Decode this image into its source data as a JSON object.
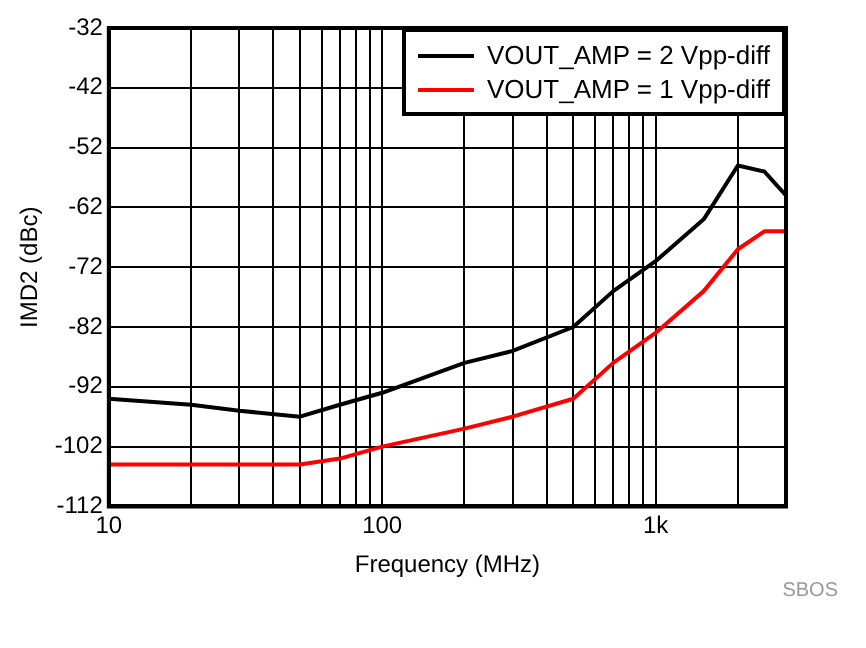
{
  "chart_data": {
    "type": "line",
    "xlabel": "Frequency (MHz)",
    "ylabel": "IMD2 (dBc)",
    "x": [
      10,
      20,
      30,
      50,
      70,
      100,
      200,
      300,
      500,
      700,
      1000,
      1500,
      2000,
      2500,
      3000
    ],
    "series": [
      {
        "name": "VOUT_AMP = 2 Vpp-diff",
        "color": "#000000",
        "values": [
          -94,
          -95,
          -96,
          -97,
          -95,
          -93,
          -88,
          -86,
          -82,
          -76,
          -71,
          -64,
          -55,
          -56,
          -60
        ]
      },
      {
        "name": "VOUT_AMP = 1 Vpp-diff",
        "color": "#ff0000",
        "values": [
          -105,
          -105,
          -105,
          -105,
          -104,
          -102,
          -99,
          -97,
          -94,
          -88,
          -83,
          -76,
          -69,
          -66,
          -66
        ]
      }
    ],
    "xlim": [
      10,
      3000
    ],
    "xticks": [
      10,
      {
        "value": 20,
        "label": null
      },
      {
        "value": 30,
        "label": null
      },
      {
        "value": 40,
        "label": null
      },
      {
        "value": 50,
        "label": null
      },
      {
        "value": 60,
        "label": null
      },
      {
        "value": 70,
        "label": null
      },
      {
        "value": 80,
        "label": null
      },
      {
        "value": 90,
        "label": null
      },
      100,
      {
        "value": 200,
        "label": null
      },
      {
        "value": 300,
        "label": null
      },
      {
        "value": 400,
        "label": null
      },
      {
        "value": 500,
        "label": null
      },
      {
        "value": 600,
        "label": null
      },
      {
        "value": 700,
        "label": null
      },
      {
        "value": 800,
        "label": null
      },
      {
        "value": 900,
        "label": null
      },
      {
        "value": 1000,
        "label": "1k"
      },
      {
        "value": 2000,
        "label": null
      }
    ],
    "ylim": [
      -112,
      -32
    ],
    "yticks": [
      -112,
      -102,
      -92,
      -82,
      -72,
      -62,
      -52,
      -42,
      -32
    ],
    "log": "x",
    "grid": true,
    "legend": "top right",
    "marker": "none",
    "line_style": "solid",
    "annotations": [
      "SBOS"
    ]
  }
}
